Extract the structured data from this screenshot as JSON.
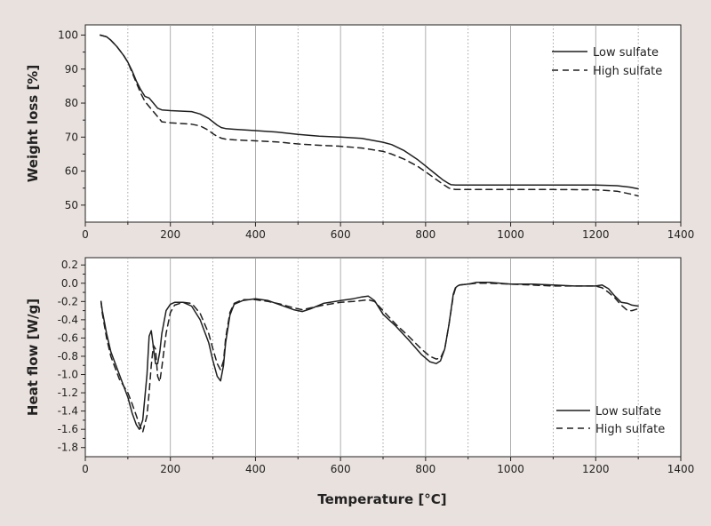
{
  "chart_data": [
    {
      "type": "line",
      "id": "weight",
      "ylabel": "Weight loss [%]",
      "xlabel": "",
      "xlim": [
        0,
        1400
      ],
      "ylim": [
        45,
        103
      ],
      "xticks": [
        0,
        200,
        400,
        600,
        800,
        1000,
        1200,
        1400
      ],
      "yticks": [
        50,
        60,
        70,
        80,
        90,
        100
      ],
      "legend_position": "top-right",
      "grid": "vertical",
      "series": [
        {
          "name": "Low sulfate",
          "style": "solid",
          "x": [
            35,
            50,
            60,
            75,
            90,
            100,
            110,
            120,
            130,
            140,
            150,
            160,
            170,
            180,
            200,
            250,
            270,
            290,
            300,
            310,
            320,
            330,
            350,
            400,
            450,
            500,
            550,
            600,
            650,
            700,
            720,
            750,
            780,
            800,
            820,
            840,
            855,
            860,
            870,
            900,
            1000,
            1100,
            1200,
            1250,
            1280,
            1300
          ],
          "y": [
            100,
            99.5,
            98.5,
            96.5,
            94,
            92,
            89.5,
            86.5,
            84,
            82,
            81.5,
            80,
            78.5,
            78,
            77.8,
            77.5,
            76.8,
            75.5,
            74.5,
            73.5,
            72.8,
            72.5,
            72.3,
            71.9,
            71.5,
            70.8,
            70.3,
            70,
            69.6,
            68.5,
            67.8,
            66,
            63.5,
            61.5,
            59.5,
            57.5,
            56.3,
            56,
            55.9,
            55.9,
            55.9,
            55.9,
            55.9,
            55.7,
            55.3,
            54.8
          ]
        },
        {
          "name": "High sulfate",
          "style": "dashed",
          "x": [
            35,
            50,
            60,
            75,
            90,
            100,
            110,
            120,
            130,
            140,
            150,
            160,
            170,
            180,
            200,
            250,
            270,
            290,
            300,
            310,
            320,
            330,
            350,
            400,
            450,
            500,
            550,
            600,
            650,
            700,
            720,
            750,
            780,
            800,
            820,
            840,
            855,
            860,
            870,
            900,
            1000,
            1100,
            1200,
            1250,
            1280,
            1300
          ],
          "y": [
            100,
            99.5,
            98.5,
            96.5,
            94,
            92,
            89,
            86,
            83,
            80.5,
            79,
            77.5,
            76,
            74.5,
            74.2,
            73.8,
            73.3,
            72,
            71,
            70.2,
            69.7,
            69.4,
            69.2,
            68.9,
            68.6,
            68,
            67.6,
            67.3,
            66.8,
            65.8,
            65,
            63.5,
            61.5,
            59.8,
            58,
            56.2,
            55,
            54.8,
            54.6,
            54.6,
            54.6,
            54.6,
            54.5,
            54.1,
            53.3,
            52.7
          ]
        }
      ]
    },
    {
      "type": "line",
      "id": "heat",
      "ylabel": "Heat flow [W/g]",
      "xlabel": "Temperature [°C]",
      "xlim": [
        0,
        1400
      ],
      "ylim": [
        -1.9,
        0.28
      ],
      "xticks": [
        0,
        200,
        400,
        600,
        800,
        1000,
        1200,
        1400
      ],
      "yticks": [
        0.2,
        0.0,
        -0.2,
        -0.4,
        -0.6,
        -0.8,
        -1.0,
        -1.2,
        -1.4,
        -1.6,
        -1.8
      ],
      "ytick_labels": [
        "0.2",
        "0.0",
        "-0.2",
        "-0.4",
        "-0.6",
        "-0.8",
        "-1.0",
        "-1.2",
        "-1.4",
        "-1.6",
        "-1.8"
      ],
      "legend_position": "bottom-right",
      "grid": "vertical",
      "series": [
        {
          "name": "Low sulfate",
          "style": "solid",
          "x": [
            37,
            40,
            50,
            60,
            80,
            100,
            110,
            120,
            127,
            135,
            145,
            150,
            155,
            160,
            165,
            170,
            175,
            180,
            190,
            200,
            210,
            230,
            250,
            270,
            290,
            300,
            310,
            318,
            325,
            330,
            340,
            350,
            370,
            400,
            430,
            460,
            490,
            510,
            530,
            560,
            600,
            630,
            650,
            665,
            680,
            700,
            730,
            760,
            790,
            810,
            825,
            835,
            845,
            855,
            865,
            870,
            875,
            880,
            900,
            920,
            950,
            1000,
            1050,
            1100,
            1150,
            1200,
            1215,
            1230,
            1245,
            1260,
            1275,
            1285,
            1300
          ],
          "y": [
            -0.2,
            -0.3,
            -0.55,
            -0.75,
            -1.0,
            -1.25,
            -1.42,
            -1.55,
            -1.6,
            -1.5,
            -1.0,
            -0.58,
            -0.52,
            -0.7,
            -0.88,
            -0.88,
            -0.75,
            -0.55,
            -0.3,
            -0.23,
            -0.21,
            -0.21,
            -0.25,
            -0.4,
            -0.65,
            -0.85,
            -1.02,
            -1.07,
            -0.9,
            -0.65,
            -0.35,
            -0.23,
            -0.19,
            -0.17,
            -0.19,
            -0.24,
            -0.29,
            -0.31,
            -0.28,
            -0.22,
            -0.19,
            -0.17,
            -0.15,
            -0.14,
            -0.19,
            -0.34,
            -0.47,
            -0.62,
            -0.78,
            -0.86,
            -0.88,
            -0.85,
            -0.72,
            -0.45,
            -0.12,
            -0.05,
            -0.03,
            -0.02,
            -0.01,
            0.01,
            0.01,
            -0.01,
            -0.01,
            -0.02,
            -0.03,
            -0.03,
            -0.02,
            -0.06,
            -0.14,
            -0.21,
            -0.22,
            -0.24,
            -0.25
          ]
        },
        {
          "name": "High sulfate",
          "style": "dashed",
          "x": [
            37,
            40,
            50,
            60,
            80,
            100,
            110,
            120,
            127,
            135,
            145,
            150,
            155,
            160,
            165,
            170,
            175,
            180,
            190,
            200,
            210,
            230,
            250,
            270,
            290,
            300,
            310,
            318,
            325,
            330,
            340,
            350,
            370,
            400,
            430,
            460,
            490,
            510,
            530,
            560,
            600,
            630,
            650,
            665,
            680,
            700,
            730,
            760,
            790,
            810,
            825,
            835,
            845,
            855,
            865,
            870,
            875,
            880,
            900,
            920,
            950,
            1000,
            1050,
            1100,
            1150,
            1200,
            1215,
            1230,
            1245,
            1260,
            1275,
            1285,
            1300
          ],
          "y": [
            -0.2,
            -0.33,
            -0.6,
            -0.8,
            -1.05,
            -1.2,
            -1.32,
            -1.45,
            -1.55,
            -1.63,
            -1.45,
            -1.2,
            -0.9,
            -0.68,
            -0.72,
            -1.02,
            -1.08,
            -0.92,
            -0.55,
            -0.32,
            -0.24,
            -0.21,
            -0.22,
            -0.33,
            -0.55,
            -0.72,
            -0.88,
            -0.95,
            -0.85,
            -0.6,
            -0.32,
            -0.22,
            -0.18,
            -0.18,
            -0.2,
            -0.23,
            -0.27,
            -0.29,
            -0.27,
            -0.24,
            -0.21,
            -0.2,
            -0.19,
            -0.18,
            -0.2,
            -0.3,
            -0.45,
            -0.58,
            -0.72,
            -0.8,
            -0.83,
            -0.82,
            -0.72,
            -0.45,
            -0.14,
            -0.06,
            -0.03,
            -0.02,
            -0.01,
            0.0,
            0.0,
            -0.01,
            -0.02,
            -0.03,
            -0.03,
            -0.03,
            -0.05,
            -0.1,
            -0.16,
            -0.24,
            -0.3,
            -0.3,
            -0.28
          ]
        }
      ]
    }
  ]
}
